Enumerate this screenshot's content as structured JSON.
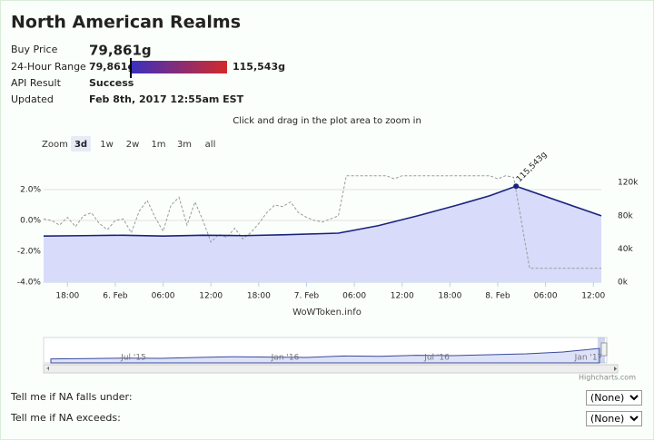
{
  "header": {
    "title": "North American Realms"
  },
  "info": {
    "buy_price": {
      "label": "Buy Price",
      "value": 79861,
      "value_label": "79,861g"
    },
    "range": {
      "label": "24-Hour Range",
      "low": {
        "value": 79861,
        "label": "79,861g"
      },
      "high": {
        "value": 115543,
        "label": "115,543g"
      }
    },
    "api_result": {
      "label": "API Result",
      "value": "Success"
    },
    "updated": {
      "label": "Updated",
      "value": "Feb 8th, 2017 12:55am EST"
    }
  },
  "chart": {
    "type": "area",
    "subtitle": "Click and drag in the plot area to zoom in",
    "zoom_label": "Zoom",
    "zoom_buttons": [
      "3d",
      "1w",
      "2w",
      "1m",
      "3m",
      "all"
    ],
    "selected_button": "3d",
    "credit": "WoWToken.info",
    "brand": "Highcharts.com",
    "annotation": "115,543g",
    "grid": true,
    "xlim": [
      0,
      70
    ],
    "xticks": [
      {
        "value": 3,
        "label": "18:00"
      },
      {
        "value": 9,
        "label": "6. Feb"
      },
      {
        "value": 15,
        "label": "06:00"
      },
      {
        "value": 21,
        "label": "12:00"
      },
      {
        "value": 27,
        "label": "18:00"
      },
      {
        "value": 33,
        "label": "7. Feb"
      },
      {
        "value": 39,
        "label": "06:00"
      },
      {
        "value": 45,
        "label": "12:00"
      },
      {
        "value": 51,
        "label": "18:00"
      },
      {
        "value": 57,
        "label": "8. Feb"
      },
      {
        "value": 63,
        "label": "06:00"
      },
      {
        "value": 69,
        "label": "12:00"
      }
    ],
    "ylim": [
      -4,
      3
    ],
    "yticks": [
      {
        "value": 2,
        "label": "2.0%"
      },
      {
        "value": 0,
        "label": "0.0%"
      },
      {
        "value": -2,
        "label": "-2.0%"
      },
      {
        "value": -4,
        "label": "-4.0%"
      }
    ],
    "y2lim": [
      0,
      130000
    ],
    "y2ticks": [
      {
        "value": 120000,
        "label": "120k"
      },
      {
        "value": 80000,
        "label": "80k"
      },
      {
        "value": 40000,
        "label": "40k"
      },
      {
        "value": 0,
        "label": "0k"
      }
    ],
    "series": [
      {
        "axis": "y2",
        "type": "area",
        "color": "#1a237e",
        "fill": "#d8dcfa",
        "x": [
          0,
          5,
          10,
          15,
          20,
          25,
          30,
          37,
          42,
          47,
          52,
          56,
          59.3,
          70
        ],
        "values": [
          55500,
          56000,
          56500,
          55500,
          56500,
          56000,
          57000,
          59000,
          68000,
          80000,
          93000,
          104000,
          115543,
          79861
        ]
      },
      {
        "axis": "y",
        "type": "line",
        "dashed": true,
        "color": "#9a9a9a",
        "x": [
          0,
          1,
          2,
          3,
          4,
          5,
          6,
          7,
          8,
          9,
          10,
          11,
          12,
          13,
          14,
          15,
          16,
          17,
          18,
          19,
          20,
          21,
          22,
          23,
          24,
          25,
          26,
          27,
          28,
          29,
          30,
          31,
          32,
          33,
          34,
          35,
          36,
          37,
          38,
          43,
          44,
          45,
          56,
          57,
          58,
          59,
          61,
          70
        ],
        "values": [
          0.1,
          0.0,
          -0.3,
          0.2,
          -0.4,
          0.3,
          0.5,
          -0.2,
          -0.6,
          0.0,
          0.1,
          -0.8,
          0.6,
          1.3,
          0.2,
          -0.7,
          1.0,
          1.5,
          -0.3,
          1.2,
          0.0,
          -1.4,
          -0.9,
          -1.1,
          -0.5,
          -1.2,
          -0.8,
          -0.2,
          0.5,
          1.0,
          0.9,
          1.2,
          0.5,
          0.2,
          0.0,
          -0.1,
          0.1,
          0.3,
          2.9,
          2.9,
          2.7,
          2.9,
          2.9,
          2.7,
          2.9,
          2.8,
          -3.1,
          -3.1
        ]
      }
    ],
    "navigator": {
      "labels": [
        "Jul '15",
        "Jan '16",
        "Jul '16",
        "Jan '17"
      ],
      "ylim": [
        0,
        140000
      ],
      "values": [
        22000,
        24000,
        26000,
        25000,
        30000,
        34000,
        32000,
        30000,
        38000,
        36000,
        42000,
        40000,
        45000,
        50000,
        60000,
        80000
      ]
    }
  },
  "alerts": [
    {
      "label": "Tell me if NA falls under:",
      "option": "(None)"
    },
    {
      "label": "Tell me if NA exceeds:",
      "option": "(None)"
    }
  ]
}
